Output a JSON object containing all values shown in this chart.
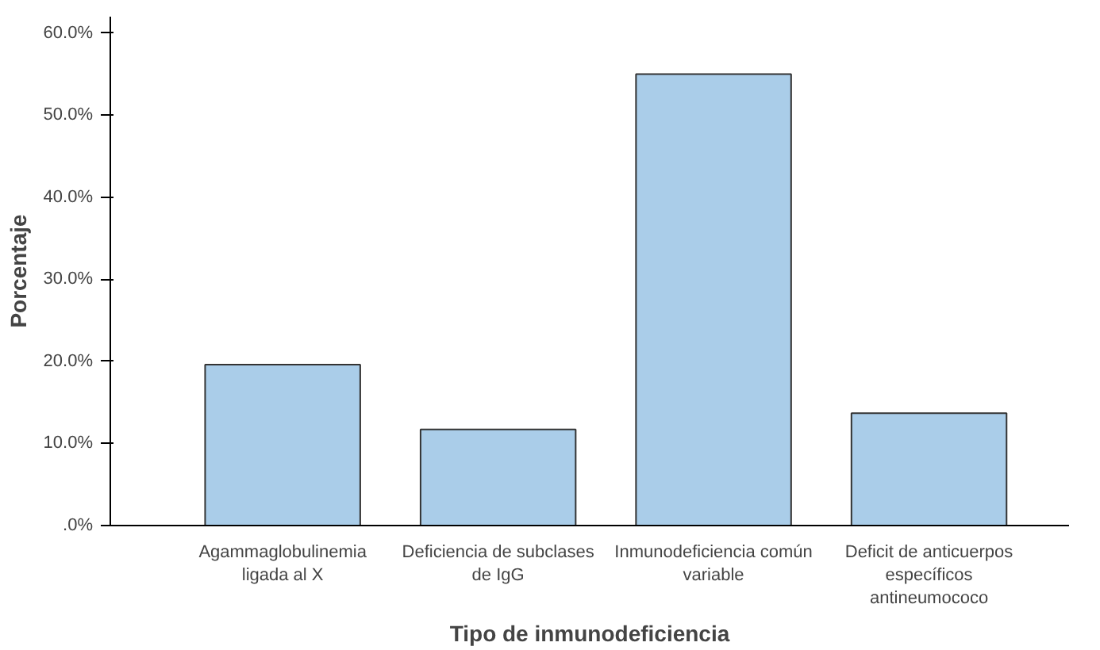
{
  "chart_data": {
    "type": "bar",
    "xlabel": "Tipo de inmunodeficiencia",
    "ylabel": "Porcentaje",
    "categories": [
      "Agammaglobulinemia ligada al X",
      "Deficiencia de subclases de IgG",
      "Inmunodeficiencia común variable",
      "Deficit de anticuerpos específicos antineumococo"
    ],
    "values": [
      19.6,
      11.7,
      55.0,
      13.7
    ],
    "color": "#aacde9",
    "ylim": [
      0,
      62
    ],
    "yticks": [
      {
        "value": 0,
        "label": ".0%"
      },
      {
        "value": 10,
        "label": "10.0%"
      },
      {
        "value": 20,
        "label": "20.0%"
      },
      {
        "value": 30,
        "label": "30.0%"
      },
      {
        "value": 40,
        "label": "40.0%"
      },
      {
        "value": 50,
        "label": "50.0%"
      },
      {
        "value": 60,
        "label": "60.0%"
      }
    ],
    "grid": false
  }
}
